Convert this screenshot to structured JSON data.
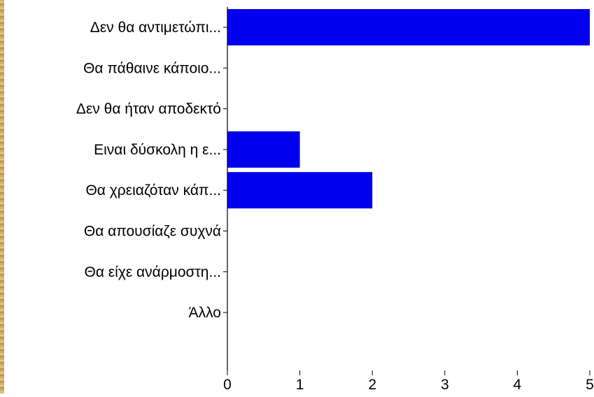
{
  "colors": {
    "bar": "#0000ee",
    "axis": "#000000",
    "background": "#ffffff",
    "frame": "#c9a35a"
  },
  "chart_data": {
    "type": "bar",
    "orientation": "horizontal",
    "categories": [
      "Δεν θα αντιμετώπι...",
      "Θα πάθαινε κάποιο...",
      "Δεν θα ήταν αποδεκτό",
      "Ειναι δύσκολη η ε...",
      "Θα χρειαζόταν κάπ...",
      "Θα απουσίαζε συχνά",
      "Θα είχε ανάρμοστη...",
      "Άλλο"
    ],
    "values": [
      5,
      0,
      0,
      1,
      2,
      0,
      0,
      0
    ],
    "xlim": [
      0,
      5
    ],
    "xticks": [
      "0",
      "1",
      "2",
      "3",
      "4",
      "5"
    ],
    "grid": false
  }
}
